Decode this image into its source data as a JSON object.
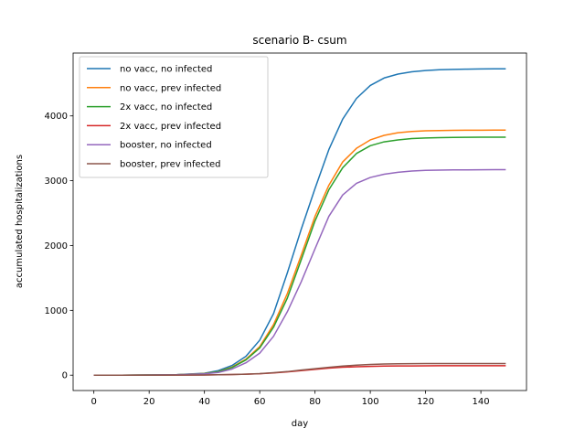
{
  "chart_data": {
    "type": "line",
    "title": "scenario B- csum",
    "xlabel": "day",
    "ylabel": "accumulated hospitalizations",
    "xlim": [
      -7.5,
      156.5
    ],
    "ylim": [
      -237,
      4970
    ],
    "xticks": [
      0,
      20,
      40,
      60,
      80,
      100,
      120,
      140
    ],
    "yticks": [
      0,
      1000,
      2000,
      3000,
      4000
    ],
    "grid": false,
    "legend_position": "upper left",
    "x": [
      0,
      10,
      20,
      30,
      40,
      45,
      50,
      55,
      60,
      65,
      70,
      75,
      80,
      85,
      90,
      95,
      100,
      105,
      110,
      115,
      120,
      125,
      130,
      135,
      140,
      145,
      149
    ],
    "series": [
      {
        "name": "no vacc, no infected",
        "color": "#1f77b4",
        "values": [
          0,
          0,
          2,
          8,
          30,
          70,
          150,
          290,
          540,
          950,
          1580,
          2250,
          2880,
          3480,
          3950,
          4270,
          4470,
          4585,
          4645,
          4680,
          4700,
          4712,
          4718,
          4722,
          4725,
          4726,
          4727
        ]
      },
      {
        "name": "no vacc, prev infected",
        "color": "#ff7f0e",
        "values": [
          0,
          0,
          2,
          7,
          25,
          55,
          125,
          245,
          440,
          780,
          1260,
          1850,
          2450,
          2930,
          3290,
          3500,
          3630,
          3700,
          3740,
          3760,
          3770,
          3775,
          3778,
          3780,
          3780,
          3781,
          3781
        ]
      },
      {
        "name": "2x vacc, no infected",
        "color": "#2ca02c",
        "values": [
          0,
          0,
          2,
          7,
          24,
          52,
          118,
          235,
          420,
          740,
          1190,
          1780,
          2380,
          2860,
          3200,
          3420,
          3540,
          3600,
          3630,
          3650,
          3660,
          3665,
          3668,
          3670,
          3671,
          3672,
          3672
        ]
      },
      {
        "name": "2x vacc, prev infected",
        "color": "#d62728",
        "values": [
          0,
          0,
          0,
          1,
          3,
          6,
          10,
          15,
          22,
          34,
          50,
          70,
          90,
          108,
          122,
          130,
          136,
          140,
          142,
          143,
          144,
          145,
          145,
          145,
          145,
          145,
          145
        ]
      },
      {
        "name": "booster, no infected",
        "color": "#9467bd",
        "values": [
          0,
          0,
          2,
          6,
          20,
          42,
          95,
          190,
          340,
          600,
          980,
          1440,
          1950,
          2450,
          2780,
          2960,
          3050,
          3100,
          3130,
          3150,
          3160,
          3164,
          3167,
          3168,
          3169,
          3170,
          3170
        ]
      },
      {
        "name": "booster, prev infected",
        "color": "#8c564b",
        "values": [
          0,
          0,
          0,
          1,
          3,
          6,
          10,
          16,
          24,
          38,
          55,
          78,
          100,
          122,
          140,
          155,
          165,
          172,
          176,
          178,
          179,
          180,
          180,
          180,
          180,
          180,
          180
        ]
      }
    ]
  }
}
